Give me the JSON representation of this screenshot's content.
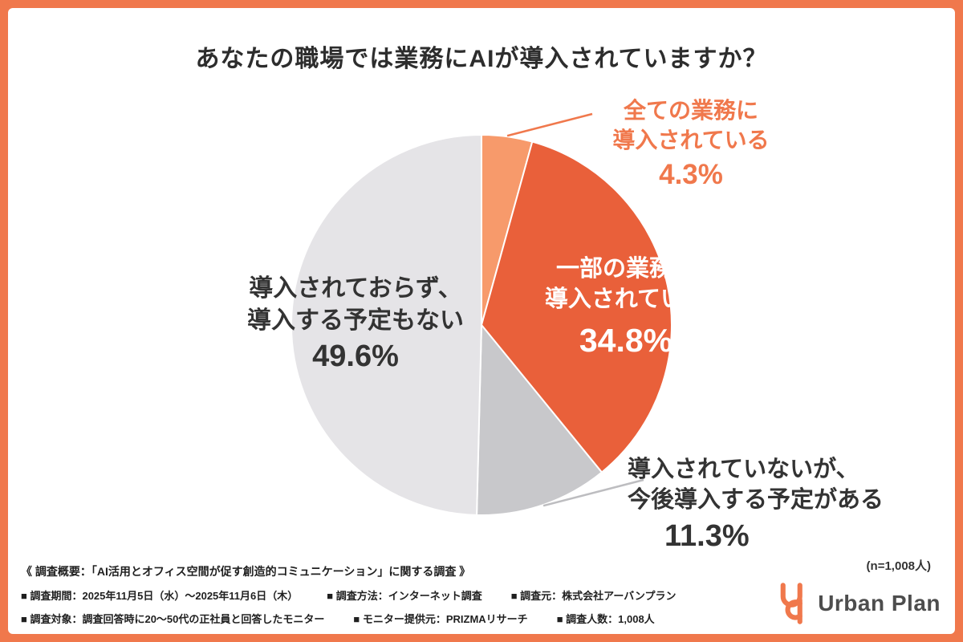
{
  "frame": {
    "border_color": "#F0784C",
    "background": "#FFFFFF"
  },
  "title": "あなたの職場では業務にAIが導入されていますか？",
  "chart_data": {
    "type": "pie",
    "title": "あなたの職場では業務にAIが導入されていますか？",
    "start_angle_deg": 0,
    "direction": "clockwise",
    "total_label": "(n=1,008人)",
    "slices": [
      {
        "label": "全ての業務に導入されている",
        "value": 4.3,
        "display": "4.3%",
        "color": "#F79A6B"
      },
      {
        "label": "一部の業務に導入されている",
        "value": 34.8,
        "display": "34.8%",
        "color": "#E9603A"
      },
      {
        "label": "導入されていないが、今後導入する予定がある",
        "value": 11.3,
        "display": "11.3%",
        "color": "#C8C8CB"
      },
      {
        "label": "導入されておらず、導入する予定もない",
        "value": 49.6,
        "display": "49.6%",
        "color": "#E5E4E7"
      }
    ]
  },
  "callouts": {
    "all": {
      "line1": "全ての業務に",
      "line2": "導入されている",
      "value": "4.3%",
      "color": "#F0784C"
    },
    "partial": {
      "line1": "一部の業務に",
      "line2": "導入されている",
      "value": "34.8%",
      "color": "#FFFFFF"
    },
    "none": {
      "line1": "導入されておらず、",
      "line2": "導入する予定もない",
      "value": "49.6%",
      "color": "#333333"
    },
    "planned": {
      "line1": "導入されていないが、",
      "line2": "今後導入する予定がある",
      "value": "11.3%",
      "color": "#333333"
    }
  },
  "note": "(n=1,008人)",
  "footer": {
    "overview": "《 調査概要：「AI活用とオフィス空間が促す創造的コミュニケーション」に関する調査 》",
    "row1": [
      "■ 調査期間：2025年11月5日（水）〜2025年11月6日（木）",
      "■ 調査方法：インターネット調査",
      "■ 調査元：株式会社アーバンプラン"
    ],
    "row2": [
      "■ 調査対象：調査回答時に20〜50代の正社員と回答したモニター",
      "■ モニター提供元：PRIZMAリサーチ",
      "■ 調査人数：1,008人"
    ],
    "logo_text": "Urban Plan"
  }
}
